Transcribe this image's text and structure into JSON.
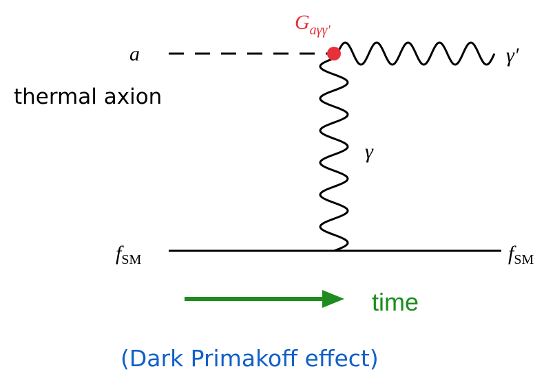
{
  "diagram": {
    "incoming_label": "a",
    "incoming_caption": "thermal axion",
    "vertex_label": {
      "main": "G",
      "sub": "aγγ′"
    },
    "outgoing_label": "γ′",
    "propagator_label": "γ",
    "fermion_left": {
      "main": "f",
      "sub": "SM"
    },
    "fermion_right": {
      "main": "f",
      "sub": "SM"
    },
    "time_label": "time",
    "caption": "(Dark Primakoff effect)"
  }
}
